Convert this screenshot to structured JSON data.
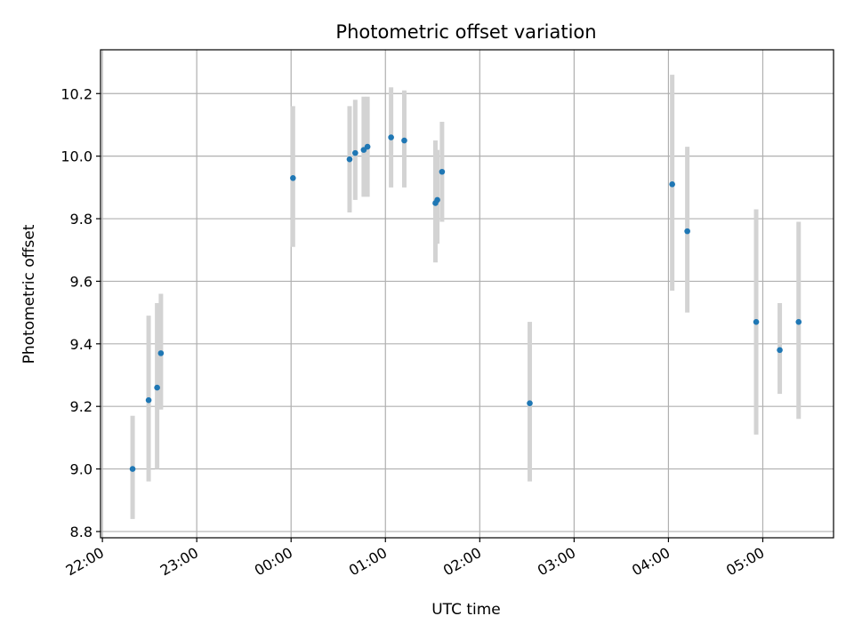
{
  "chart_data": {
    "type": "scatter",
    "title": "Photometric offset variation",
    "xlabel": "UTC time",
    "ylabel": "Photometric offset",
    "x_unit": "hours since 22:00 UTC",
    "xlim": [
      -0.02,
      7.75
    ],
    "ylim": [
      8.78,
      10.34
    ],
    "x_ticks": [
      {
        "value": 0,
        "label": "22:00"
      },
      {
        "value": 1,
        "label": "23:00"
      },
      {
        "value": 2,
        "label": "00:00"
      },
      {
        "value": 3,
        "label": "01:00"
      },
      {
        "value": 4,
        "label": "02:00"
      },
      {
        "value": 5,
        "label": "03:00"
      },
      {
        "value": 6,
        "label": "04:00"
      },
      {
        "value": 7,
        "label": "05:00"
      }
    ],
    "y_ticks": [
      {
        "value": 8.8,
        "label": "8.8"
      },
      {
        "value": 9.0,
        "label": "9.0"
      },
      {
        "value": 9.2,
        "label": "9.2"
      },
      {
        "value": 9.4,
        "label": "9.4"
      },
      {
        "value": 9.6,
        "label": "9.6"
      },
      {
        "value": 9.8,
        "label": "9.8"
      },
      {
        "value": 10.0,
        "label": "10.0"
      },
      {
        "value": 10.2,
        "label": "10.2"
      }
    ],
    "grid": true,
    "series": [
      {
        "points": [
          {
            "x": 0.32,
            "y": 9.0,
            "ylow": 8.84,
            "yhigh": 9.17
          },
          {
            "x": 0.49,
            "y": 9.22,
            "ylow": 8.96,
            "yhigh": 9.49
          },
          {
            "x": 0.58,
            "y": 9.26,
            "ylow": 9.0,
            "yhigh": 9.53
          },
          {
            "x": 0.62,
            "y": 9.37,
            "ylow": 9.19,
            "yhigh": 9.56
          },
          {
            "x": 2.02,
            "y": 9.93,
            "ylow": 9.71,
            "yhigh": 10.16
          },
          {
            "x": 2.62,
            "y": 9.99,
            "ylow": 9.82,
            "yhigh": 10.16
          },
          {
            "x": 2.68,
            "y": 10.01,
            "ylow": 9.86,
            "yhigh": 10.18
          },
          {
            "x": 2.77,
            "y": 10.02,
            "ylow": 9.87,
            "yhigh": 10.19
          },
          {
            "x": 2.81,
            "y": 10.03,
            "ylow": 9.87,
            "yhigh": 10.19
          },
          {
            "x": 3.06,
            "y": 10.06,
            "ylow": 9.9,
            "yhigh": 10.22
          },
          {
            "x": 3.2,
            "y": 10.05,
            "ylow": 9.9,
            "yhigh": 10.21
          },
          {
            "x": 3.53,
            "y": 9.85,
            "ylow": 9.66,
            "yhigh": 10.05
          },
          {
            "x": 3.55,
            "y": 9.86,
            "ylow": 9.72,
            "yhigh": 10.02
          },
          {
            "x": 3.6,
            "y": 9.95,
            "ylow": 9.79,
            "yhigh": 10.11
          },
          {
            "x": 4.53,
            "y": 9.21,
            "ylow": 8.96,
            "yhigh": 9.47
          },
          {
            "x": 6.04,
            "y": 9.91,
            "ylow": 9.57,
            "yhigh": 10.26
          },
          {
            "x": 6.2,
            "y": 9.76,
            "ylow": 9.5,
            "yhigh": 10.03
          },
          {
            "x": 6.93,
            "y": 9.47,
            "ylow": 9.11,
            "yhigh": 9.83
          },
          {
            "x": 7.18,
            "y": 9.38,
            "ylow": 9.24,
            "yhigh": 9.53
          },
          {
            "x": 7.38,
            "y": 9.47,
            "ylow": 9.16,
            "yhigh": 9.79
          }
        ]
      }
    ],
    "colors": {
      "point": "#1f77b4",
      "errorbar": "#d3d3d3",
      "grid": "#b0b0b0",
      "axis": "#000000"
    }
  }
}
